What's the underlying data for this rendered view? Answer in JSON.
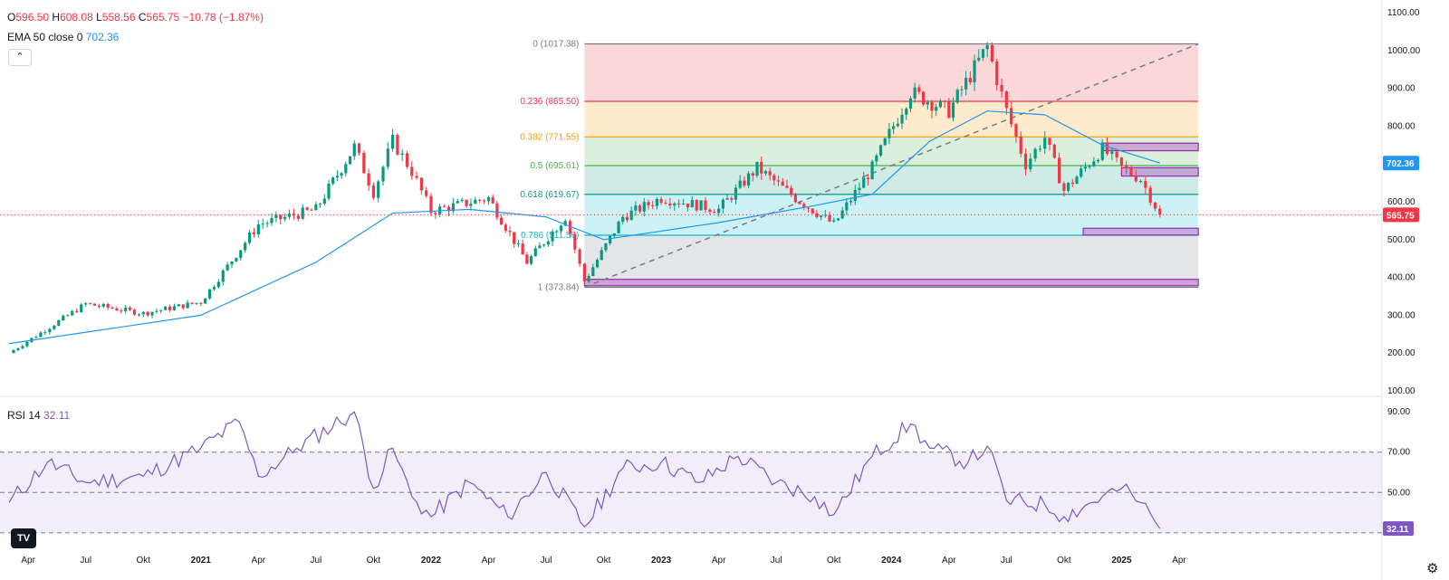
{
  "legend": {
    "o_label": "O",
    "o_value": "596.50",
    "h_label": "H",
    "h_value": "608.08",
    "l_label": "L",
    "l_value": "558.56",
    "c_label": "C",
    "c_value": "565.75",
    "change": "−10.78 (−1.87%)"
  },
  "ema": {
    "label": "EMA 50 close 0",
    "value": "702.36"
  },
  "rsi": {
    "label": "RSI 14",
    "value": "32.11"
  },
  "collapse_icon": "chevron-up-icon",
  "logo_text": "TV",
  "colors": {
    "up": "#089981",
    "down": "#f23645",
    "ema": "#2196f3",
    "rsi": "#7e57c2",
    "zone": "#9c27b0"
  },
  "chart_data": [
    {
      "type": "candlestick",
      "title": "",
      "ylim": [
        100,
        1100
      ],
      "y_ticks": [
        "100.00",
        "200.00",
        "300.00",
        "400.00",
        "500.00",
        "600.00",
        "700.00",
        "800.00",
        "900.00",
        "1000.00",
        "1100.00"
      ],
      "x_ticks": [
        "Apr",
        "Jul",
        "Okt",
        "2021",
        "Apr",
        "Jul",
        "Okt",
        "2022",
        "Apr",
        "Jul",
        "Okt",
        "2023",
        "Apr",
        "Jul",
        "Okt",
        "2024",
        "Apr",
        "Jul",
        "Okt",
        "2025",
        "Apr"
      ],
      "x_ticks_bold": [
        "2021",
        "2022",
        "2023",
        "2024",
        "2025"
      ],
      "last_close_label": "565.75",
      "ema_label": "702.36",
      "price_checkpoints": [
        {
          "x": "2020-03",
          "close": 200
        },
        {
          "x": "2020-07",
          "close": 330
        },
        {
          "x": "2020-10",
          "close": 305
        },
        {
          "x": "2021-01",
          "close": 335
        },
        {
          "x": "2021-04",
          "close": 540
        },
        {
          "x": "2021-07",
          "close": 580
        },
        {
          "x": "2021-09",
          "close": 745
        },
        {
          "x": "2021-10",
          "close": 625
        },
        {
          "x": "2021-11",
          "close": 760
        },
        {
          "x": "2021-12",
          "close": 680
        },
        {
          "x": "2022-01",
          "close": 575
        },
        {
          "x": "2022-04",
          "close": 610
        },
        {
          "x": "2022-06",
          "close": 440
        },
        {
          "x": "2022-08",
          "close": 560
        },
        {
          "x": "2022-09",
          "close": 390
        },
        {
          "x": "2022-11",
          "close": 560
        },
        {
          "x": "2023-01",
          "close": 610
        },
        {
          "x": "2023-04",
          "close": 580
        },
        {
          "x": "2023-06",
          "close": 690
        },
        {
          "x": "2023-08",
          "close": 610
        },
        {
          "x": "2023-10",
          "close": 540
        },
        {
          "x": "2023-12",
          "close": 690
        },
        {
          "x": "2024-02",
          "close": 890
        },
        {
          "x": "2024-04",
          "close": 840
        },
        {
          "x": "2024-06",
          "close": 1010
        },
        {
          "x": "2024-07",
          "close": 840
        },
        {
          "x": "2024-08",
          "close": 700
        },
        {
          "x": "2024-09",
          "close": 770
        },
        {
          "x": "2024-10",
          "close": 630
        },
        {
          "x": "2024-12",
          "close": 740
        },
        {
          "x": "2025-01",
          "close": 690
        },
        {
          "x": "2025-02",
          "close": 660
        },
        {
          "x": "2025-03",
          "close": 565.75
        }
      ],
      "ema_checkpoints": [
        {
          "x": "2020-03",
          "value": 225
        },
        {
          "x": "2021-01",
          "value": 300
        },
        {
          "x": "2021-07",
          "value": 440
        },
        {
          "x": "2021-11",
          "value": 570
        },
        {
          "x": "2022-03",
          "value": 580
        },
        {
          "x": "2022-07",
          "value": 560
        },
        {
          "x": "2022-10",
          "value": 500
        },
        {
          "x": "2023-04",
          "value": 545
        },
        {
          "x": "2023-09",
          "value": 590
        },
        {
          "x": "2023-12",
          "value": 620
        },
        {
          "x": "2024-03",
          "value": 760
        },
        {
          "x": "2024-06",
          "value": 840
        },
        {
          "x": "2024-09",
          "value": 830
        },
        {
          "x": "2024-12",
          "value": 750
        },
        {
          "x": "2025-03",
          "value": 702.36
        }
      ],
      "fibonacci": {
        "start_x": "2022-09",
        "end_x": "2025-05",
        "levels": [
          {
            "label": "0 (1017.38)",
            "ratio": 0,
            "price": 1017.38,
            "color": "#787b86"
          },
          {
            "label": "0.236 (865.50)",
            "ratio": 0.236,
            "price": 865.5,
            "color": "#f23645"
          },
          {
            "label": "0.382 (771.55)",
            "ratio": 0.382,
            "price": 771.55,
            "color": "#ff9800"
          },
          {
            "label": "0.5 (695.61)",
            "ratio": 0.5,
            "price": 695.61,
            "color": "#4caf50"
          },
          {
            "label": "0.618 (619.67)",
            "ratio": 0.618,
            "price": 619.67,
            "color": "#089981"
          },
          {
            "label": "0.786 (511.56)",
            "ratio": 0.786,
            "price": 511.56,
            "color": "#00bcd4"
          },
          {
            "label": "1 (373.84)",
            "ratio": 1,
            "price": 373.84,
            "color": "#787b86"
          }
        ],
        "band_colors": [
          "#f2364533",
          "#ff980033",
          "#4caf5033",
          "#08998133",
          "#00bcd433",
          "#787b8633"
        ]
      },
      "trend_line": {
        "from": {
          "x": "2022-09",
          "price": 373.84
        },
        "to": {
          "x": "2025-05",
          "price": 1017.38
        }
      },
      "zones": [
        {
          "x_from": "2022-09",
          "x_to": "2025-05",
          "low": 378,
          "high": 395
        },
        {
          "x_from": "2024-12",
          "x_to": "2025-05",
          "low": 735,
          "high": 755
        },
        {
          "x_from": "2025-01",
          "x_to": "2025-05",
          "low": 668,
          "high": 690
        },
        {
          "x_from": "2024-11",
          "x_to": "2025-05",
          "low": 512,
          "high": 530
        }
      ]
    },
    {
      "type": "line",
      "name": "RSI 14",
      "ylim": [
        25,
        95
      ],
      "y_ticks": [
        "30.00",
        "50.00",
        "70.00",
        "90.00"
      ],
      "bands": [
        30,
        50,
        70
      ],
      "last_value_label": "32.11",
      "checkpoints": [
        {
          "x": "2020-03",
          "value": 45
        },
        {
          "x": "2020-05",
          "value": 65
        },
        {
          "x": "2020-07",
          "value": 55
        },
        {
          "x": "2020-10",
          "value": 58
        },
        {
          "x": "2021-01",
          "value": 72
        },
        {
          "x": "2021-03",
          "value": 85
        },
        {
          "x": "2021-04",
          "value": 58
        },
        {
          "x": "2021-06",
          "value": 72
        },
        {
          "x": "2021-09",
          "value": 90
        },
        {
          "x": "2021-10",
          "value": 52
        },
        {
          "x": "2021-11",
          "value": 72
        },
        {
          "x": "2021-12",
          "value": 48
        },
        {
          "x": "2022-01",
          "value": 38
        },
        {
          "x": "2022-03",
          "value": 55
        },
        {
          "x": "2022-05",
          "value": 38
        },
        {
          "x": "2022-07",
          "value": 60
        },
        {
          "x": "2022-09",
          "value": 33
        },
        {
          "x": "2022-11",
          "value": 62
        },
        {
          "x": "2023-01",
          "value": 65
        },
        {
          "x": "2023-03",
          "value": 55
        },
        {
          "x": "2023-05",
          "value": 68
        },
        {
          "x": "2023-07",
          "value": 55
        },
        {
          "x": "2023-09",
          "value": 48
        },
        {
          "x": "2023-10",
          "value": 39
        },
        {
          "x": "2023-12",
          "value": 68
        },
        {
          "x": "2024-02",
          "value": 84
        },
        {
          "x": "2024-03",
          "value": 72
        },
        {
          "x": "2024-05",
          "value": 65
        },
        {
          "x": "2024-06",
          "value": 73
        },
        {
          "x": "2024-07",
          "value": 46
        },
        {
          "x": "2024-09",
          "value": 44
        },
        {
          "x": "2024-10",
          "value": 38
        },
        {
          "x": "2024-12",
          "value": 48
        },
        {
          "x": "2025-01",
          "value": 52
        },
        {
          "x": "2025-02",
          "value": 45
        },
        {
          "x": "2025-03",
          "value": 32.11
        }
      ]
    }
  ]
}
